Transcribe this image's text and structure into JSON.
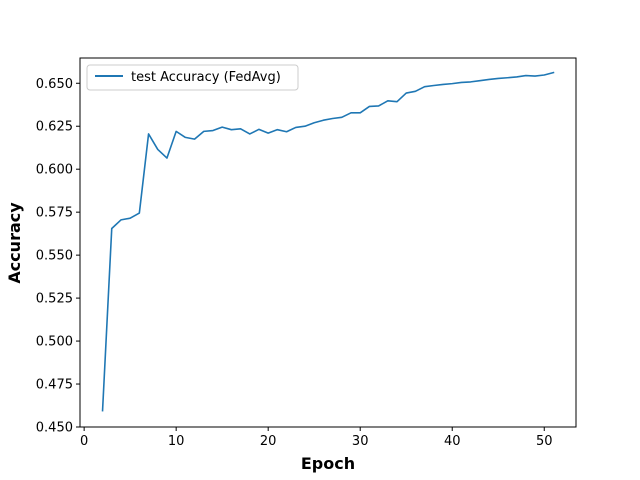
{
  "chart_data": {
    "type": "line",
    "title": "",
    "xlabel": "Epoch",
    "ylabel": "Accuracy",
    "xlim": [
      -0.45,
      53.45
    ],
    "ylim": [
      0.45,
      0.6647
    ],
    "xticks": [
      0,
      10,
      20,
      30,
      40,
      50
    ],
    "yticks": [
      0.45,
      0.475,
      0.5,
      0.525,
      0.55,
      0.575,
      0.6,
      0.625,
      0.65
    ],
    "ytick_labels": [
      "0.450",
      "0.475",
      "0.500",
      "0.525",
      "0.550",
      "0.575",
      "0.600",
      "0.625",
      "0.650"
    ],
    "legend": {
      "position": "top-left",
      "frame": true
    },
    "grid": false,
    "series": [
      {
        "name": "test Accuracy (FedAvg)",
        "color": "#1f77b4",
        "x": [
          2,
          3,
          4,
          5,
          6,
          7,
          8,
          9,
          10,
          11,
          12,
          13,
          14,
          15,
          16,
          17,
          18,
          19,
          20,
          21,
          22,
          23,
          24,
          25,
          26,
          27,
          28,
          29,
          30,
          31,
          32,
          33,
          34,
          35,
          36,
          37,
          38,
          39,
          40,
          41,
          42,
          43,
          44,
          45,
          46,
          47,
          48,
          49,
          50,
          51
        ],
        "y": [
          0.4595,
          0.5655,
          0.5705,
          0.5715,
          0.5745,
          0.6205,
          0.6115,
          0.6065,
          0.622,
          0.6185,
          0.6175,
          0.622,
          0.6225,
          0.6245,
          0.623,
          0.6235,
          0.6205,
          0.6232,
          0.621,
          0.623,
          0.6218,
          0.6243,
          0.625,
          0.627,
          0.6285,
          0.6295,
          0.6302,
          0.6328,
          0.6328,
          0.6365,
          0.6368,
          0.6398,
          0.6393,
          0.6443,
          0.6453,
          0.648,
          0.6487,
          0.6493,
          0.6498,
          0.6505,
          0.6508,
          0.6515,
          0.6522,
          0.6528,
          0.6532,
          0.6537,
          0.6545,
          0.6542,
          0.6548,
          0.6562
        ]
      }
    ]
  }
}
